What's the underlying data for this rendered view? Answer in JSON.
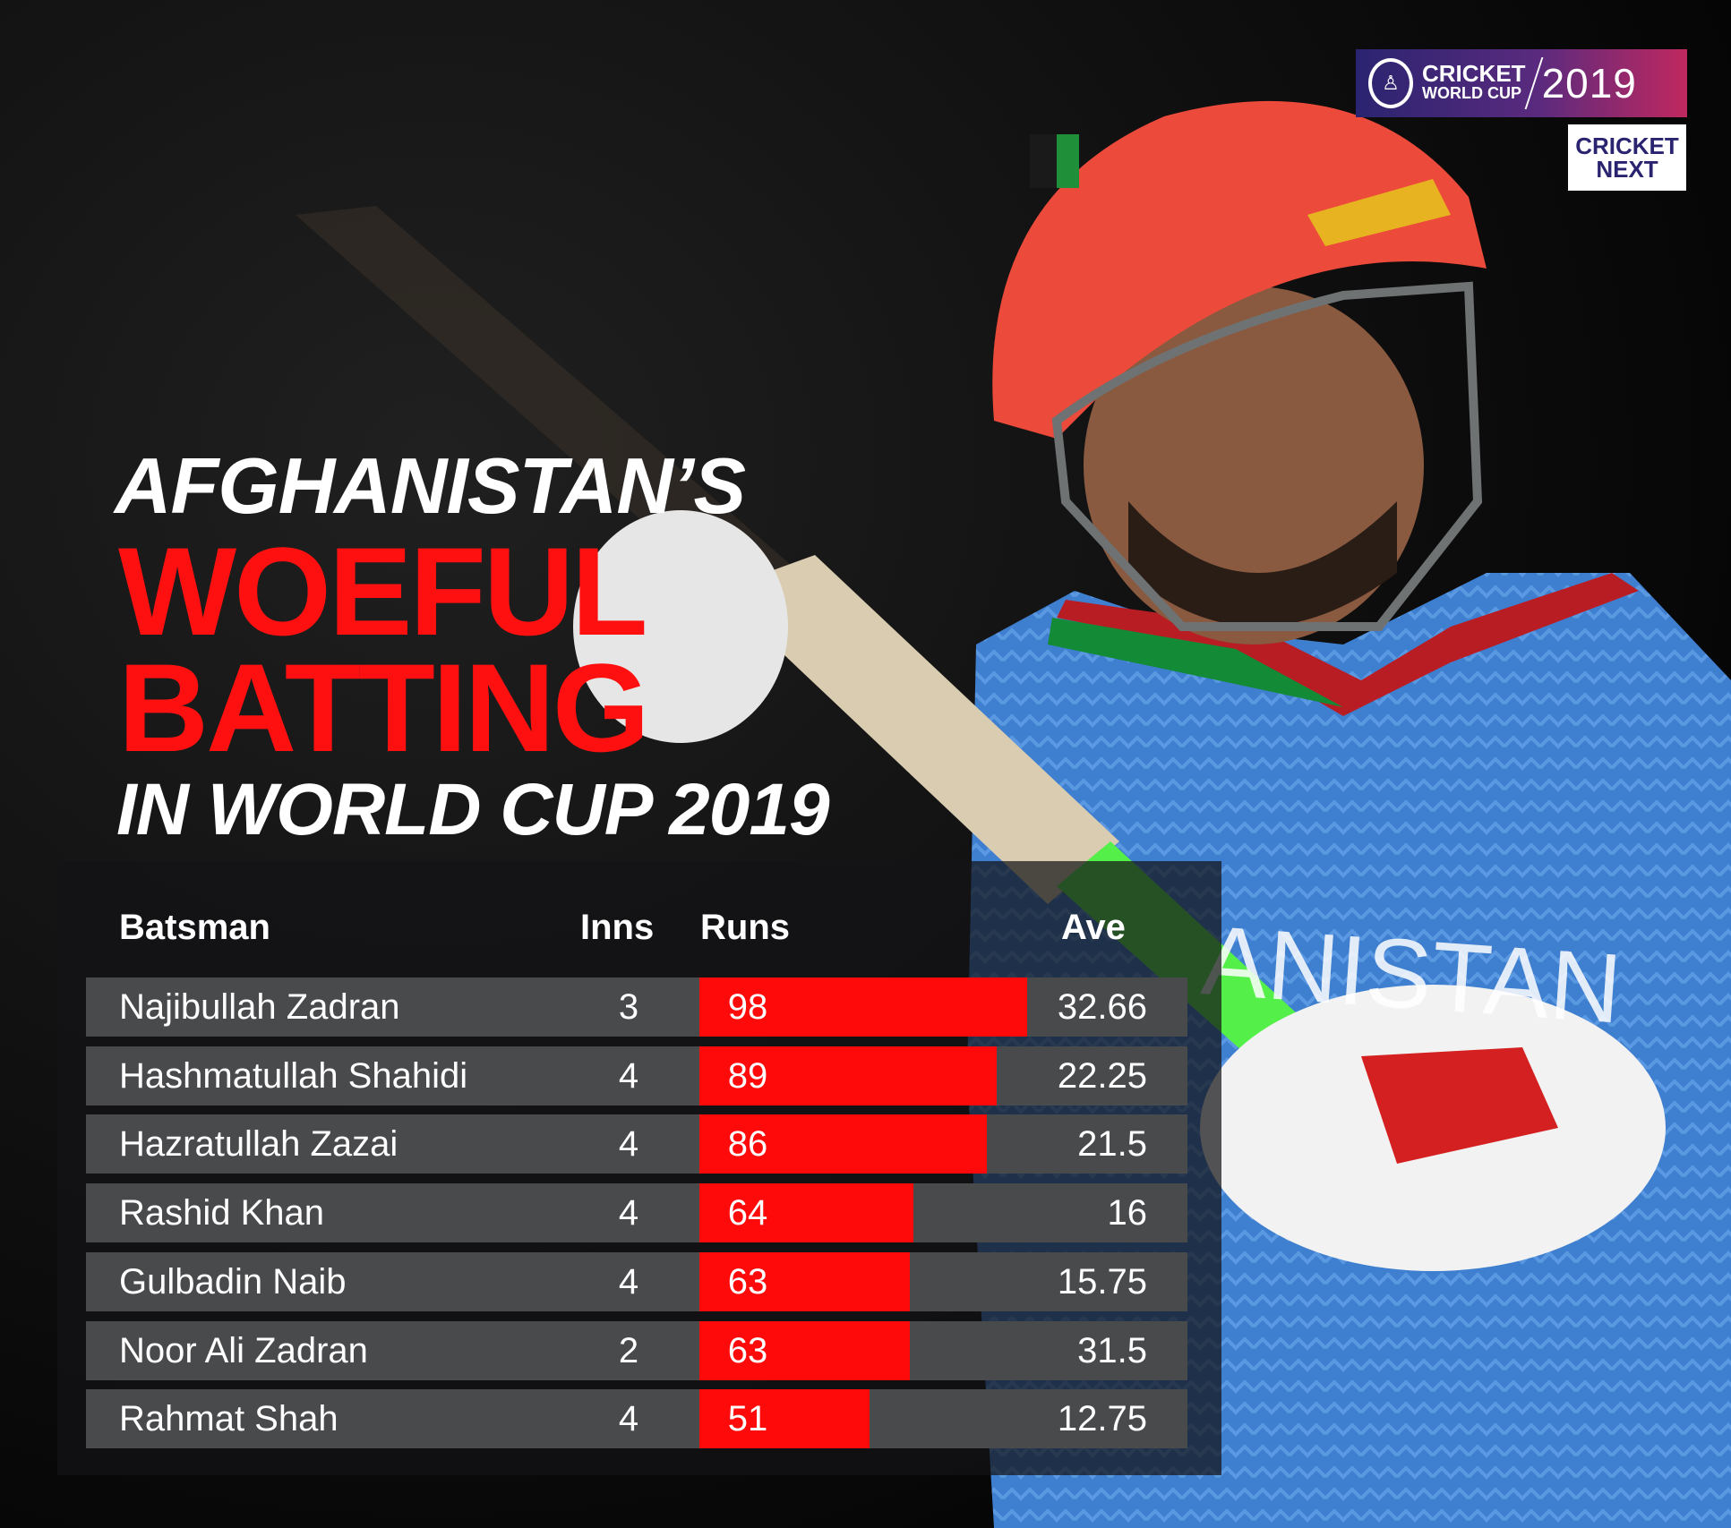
{
  "title": {
    "line1": "AFGHANISTAN’S",
    "line2": "WOEFUL",
    "line3": "BATTING",
    "line4": "IN WORLD CUP 2019"
  },
  "logos": {
    "event_line1": "CRICKET",
    "event_line2": "WORLD CUP",
    "event_year": "2019",
    "partner_line1": "CRICKET",
    "partner_line2": "NEXT"
  },
  "colors": {
    "accent": "#ff0a0a",
    "row": "#494a4c",
    "text": "#ffffff"
  },
  "chart_data": {
    "type": "table",
    "columns": [
      "Batsman",
      "Inns",
      "Runs",
      "Ave"
    ],
    "bar_column": "Runs",
    "bar_max": 98,
    "rows": [
      {
        "batsman": "Najibullah Zadran",
        "inns": "3",
        "runs": 98,
        "runs_label": "98",
        "ave": "32.66"
      },
      {
        "batsman": "Hashmatullah Shahidi",
        "inns": "4",
        "runs": 89,
        "runs_label": "89",
        "ave": "22.25"
      },
      {
        "batsman": "Hazratullah Zazai",
        "inns": "4",
        "runs": 86,
        "runs_label": "86",
        "ave": "21.5"
      },
      {
        "batsman": "Rashid Khan",
        "inns": "4",
        "runs": 64,
        "runs_label": "64",
        "ave": "16"
      },
      {
        "batsman": "Gulbadin Naib",
        "inns": "4",
        "runs": 63,
        "runs_label": "63",
        "ave": "15.75"
      },
      {
        "batsman": "Noor Ali Zadran",
        "inns": "2",
        "runs": 63,
        "runs_label": "63",
        "ave": "31.5"
      },
      {
        "batsman": "Rahmat Shah",
        "inns": "4",
        "runs": 51,
        "runs_label": "51",
        "ave": "12.75"
      }
    ]
  }
}
